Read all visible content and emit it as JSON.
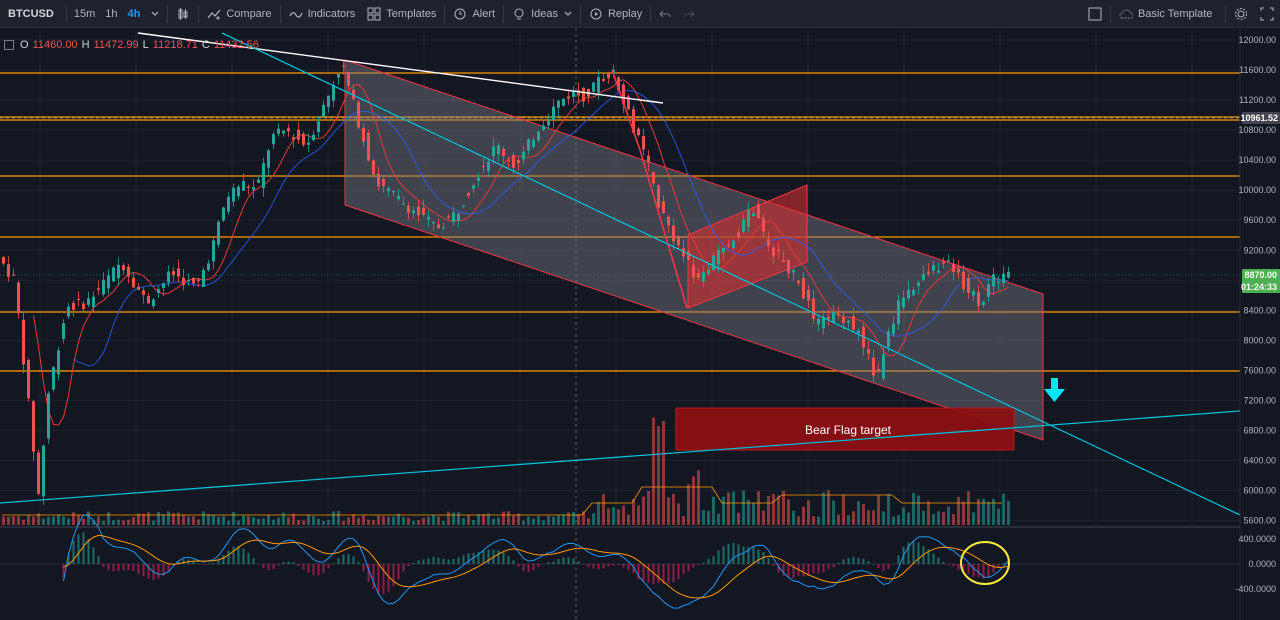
{
  "toolbar": {
    "symbol": "BTCUSD",
    "timeframes": [
      "15m",
      "1h",
      "4h"
    ],
    "active_timeframe": "4h",
    "compare_label": "Compare",
    "indicators_label": "Indicators",
    "templates_label": "Templates",
    "alert_label": "Alert",
    "ideas_label": "Ideas",
    "replay_label": "Replay",
    "template_name": "Basic Template"
  },
  "ohlc": {
    "open": "O",
    "open_value": "11460.00",
    "high": "H",
    "high_value": "11472.99",
    "low": "L",
    "low_value": "11218.71",
    "close": "C",
    "close_value": "11432.56"
  },
  "price_axis": {
    "ticks": [
      "12000.00",
      "11600.00",
      "11200.00",
      "10800.00",
      "10400.00",
      "10000.00",
      "9600.00",
      "9200.00",
      "8400.00",
      "8000.00",
      "7600.00",
      "7200.00",
      "6800.00",
      "6400.00",
      "6000.00",
      "5600.00"
    ],
    "marker_price": "10961.52",
    "current_price": "8870.00",
    "countdown": "01:24:33"
  },
  "macd_axis": {
    "ticks": [
      "400.0000",
      "0.0000",
      "-400.0000"
    ]
  },
  "annotations": {
    "bear_flag_label": "Bear Flag target"
  },
  "colors": {
    "background": "#131722",
    "up_candle": "#26a69a",
    "down_candle": "#ef5350",
    "horizontal_levels": "#ff9800",
    "channel_fill": "#787b86",
    "channel_border": "#f23645",
    "trendline_cyan": "#00bcd4",
    "target_box": "#8b0f12",
    "highlight_circle": "#ffeb3b",
    "price_tag": "#4caf50"
  }
}
